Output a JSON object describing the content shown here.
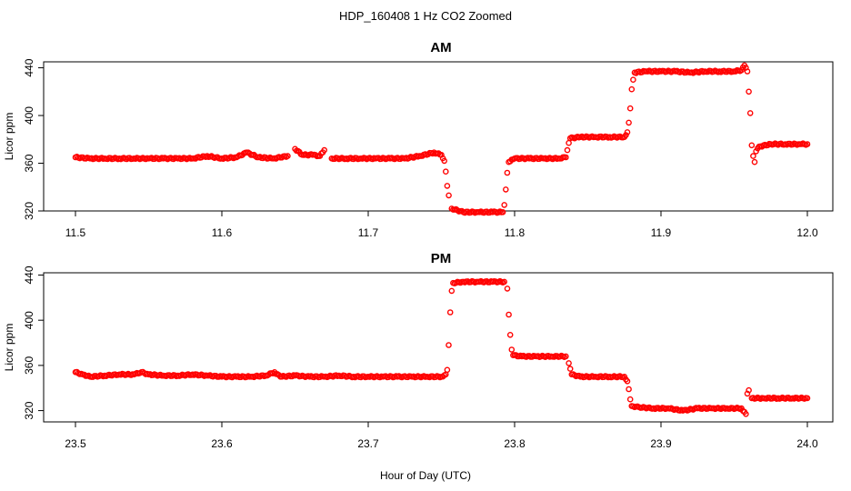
{
  "figure": {
    "title": "HDP_160408  1 Hz CO2 Zoomed",
    "xlabel": "Hour of Day (UTC)",
    "marker_color": "#ff0000"
  },
  "chart_data": [
    {
      "type": "scatter",
      "title": "AM",
      "xlabel": "Hour of Day (UTC)",
      "ylabel": "Licor ppm",
      "xlim": [
        11.5,
        12.0
      ],
      "ylim": [
        320,
        445
      ],
      "xticks": [
        "11.5",
        "11.6",
        "11.7",
        "11.8",
        "11.9",
        "12.0"
      ],
      "yticks": [
        "320",
        "360",
        "400",
        "440"
      ],
      "grid": false,
      "series": [
        {
          "points": [
            [
              11.5,
              365
            ],
            [
              11.51,
              364
            ],
            [
              11.52,
              364
            ],
            [
              11.53,
              364
            ],
            [
              11.54,
              364
            ],
            [
              11.55,
              364
            ],
            [
              11.56,
              364
            ],
            [
              11.57,
              364
            ],
            [
              11.58,
              364
            ],
            [
              11.59,
              366
            ],
            [
              11.6,
              364
            ],
            [
              11.61,
              365
            ],
            [
              11.617,
              369
            ],
            [
              11.625,
              365
            ],
            [
              11.635,
              364
            ],
            [
              11.645,
              366
            ],
            [
              11.65,
              372
            ],
            [
              11.655,
              367
            ],
            [
              11.662,
              367
            ],
            [
              11.667,
              366
            ],
            [
              11.67,
              371
            ],
            [
              11.675,
              364
            ],
            [
              11.685,
              364
            ],
            [
              11.695,
              364
            ],
            [
              11.705,
              364
            ],
            [
              11.715,
              364
            ],
            [
              11.725,
              364
            ],
            [
              11.735,
              366
            ],
            [
              11.745,
              369
            ],
            [
              11.75,
              367
            ],
            [
              11.752,
              362
            ],
            [
              11.753,
              353
            ],
            [
              11.754,
              341
            ],
            [
              11.755,
              333
            ],
            [
              11.757,
              322
            ],
            [
              11.765,
              319
            ],
            [
              11.775,
              319
            ],
            [
              11.785,
              319
            ],
            [
              11.792,
              319
            ],
            [
              11.793,
              325
            ],
            [
              11.794,
              338
            ],
            [
              11.795,
              352
            ],
            [
              11.796,
              361
            ],
            [
              11.8,
              364
            ],
            [
              11.81,
              364
            ],
            [
              11.82,
              364
            ],
            [
              11.83,
              364
            ],
            [
              11.835,
              365
            ],
            [
              11.836,
              371
            ],
            [
              11.837,
              377
            ],
            [
              11.838,
              381
            ],
            [
              11.845,
              382
            ],
            [
              11.855,
              382
            ],
            [
              11.865,
              382
            ],
            [
              11.875,
              382
            ],
            [
              11.877,
              386
            ],
            [
              11.878,
              394
            ],
            [
              11.879,
              406
            ],
            [
              11.88,
              422
            ],
            [
              11.881,
              430
            ],
            [
              11.882,
              436
            ],
            [
              11.89,
              437
            ],
            [
              11.9,
              437
            ],
            [
              11.91,
              437
            ],
            [
              11.92,
              436
            ],
            [
              11.93,
              437
            ],
            [
              11.94,
              437
            ],
            [
              11.95,
              437
            ],
            [
              11.955,
              438
            ],
            [
              11.957,
              442
            ],
            [
              11.959,
              437
            ],
            [
              11.96,
              420
            ],
            [
              11.961,
              402
            ],
            [
              11.962,
              375
            ],
            [
              11.963,
              366
            ],
            [
              11.964,
              361
            ],
            [
              11.965,
              370
            ],
            [
              11.967,
              374
            ],
            [
              11.975,
              376
            ],
            [
              11.985,
              376
            ],
            [
              11.995,
              376
            ],
            [
              12.0,
              376
            ]
          ]
        }
      ]
    },
    {
      "type": "scatter",
      "title": "PM",
      "xlabel": "Hour of Day (UTC)",
      "ylabel": "Licor ppm",
      "xlim": [
        23.5,
        24.0
      ],
      "ylim": [
        310,
        442
      ],
      "xticks": [
        "23.5",
        "23.6",
        "23.7",
        "23.8",
        "23.9",
        "24.0"
      ],
      "yticks": [
        "320",
        "360",
        "400",
        "440"
      ],
      "grid": false,
      "series": [
        {
          "points": [
            [
              23.5,
              354
            ],
            [
              23.505,
              352
            ],
            [
              23.51,
              350
            ],
            [
              23.52,
              351
            ],
            [
              23.53,
              352
            ],
            [
              23.54,
              352
            ],
            [
              23.545,
              354
            ],
            [
              23.55,
              352
            ],
            [
              23.56,
              351
            ],
            [
              23.57,
              351
            ],
            [
              23.58,
              352
            ],
            [
              23.59,
              351
            ],
            [
              23.6,
              350
            ],
            [
              23.61,
              350
            ],
            [
              23.62,
              350
            ],
            [
              23.63,
              351
            ],
            [
              23.636,
              354
            ],
            [
              23.64,
              350
            ],
            [
              23.65,
              351
            ],
            [
              23.66,
              350
            ],
            [
              23.67,
              350
            ],
            [
              23.68,
              351
            ],
            [
              23.69,
              350
            ],
            [
              23.7,
              350
            ],
            [
              23.71,
              350
            ],
            [
              23.72,
              350
            ],
            [
              23.73,
              350
            ],
            [
              23.74,
              350
            ],
            [
              23.75,
              350
            ],
            [
              23.753,
              352
            ],
            [
              23.754,
              356
            ],
            [
              23.755,
              378
            ],
            [
              23.756,
              407
            ],
            [
              23.757,
              426
            ],
            [
              23.758,
              433
            ],
            [
              23.765,
              434
            ],
            [
              23.775,
              434
            ],
            [
              23.785,
              434
            ],
            [
              23.793,
              434
            ],
            [
              23.795,
              428
            ],
            [
              23.796,
              405
            ],
            [
              23.797,
              387
            ],
            [
              23.798,
              374
            ],
            [
              23.799,
              369
            ],
            [
              23.805,
              368
            ],
            [
              23.815,
              368
            ],
            [
              23.825,
              368
            ],
            [
              23.835,
              368
            ],
            [
              23.837,
              362
            ],
            [
              23.838,
              357
            ],
            [
              23.839,
              352
            ],
            [
              23.845,
              350
            ],
            [
              23.855,
              350
            ],
            [
              23.865,
              350
            ],
            [
              23.875,
              350
            ],
            [
              23.877,
              346
            ],
            [
              23.878,
              339
            ],
            [
              23.879,
              330
            ],
            [
              23.88,
              324
            ],
            [
              23.885,
              323
            ],
            [
              23.895,
              322
            ],
            [
              23.905,
              322
            ],
            [
              23.915,
              320
            ],
            [
              23.925,
              322
            ],
            [
              23.935,
              322
            ],
            [
              23.945,
              322
            ],
            [
              23.955,
              322
            ],
            [
              23.958,
              317
            ],
            [
              23.959,
              335
            ],
            [
              23.96,
              338
            ],
            [
              23.962,
              331
            ],
            [
              23.97,
              331
            ],
            [
              23.98,
              331
            ],
            [
              23.99,
              331
            ],
            [
              24.0,
              331
            ]
          ]
        }
      ]
    }
  ]
}
